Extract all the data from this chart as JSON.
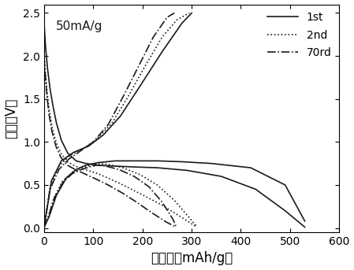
{
  "title_annotation": "50mA/g",
  "xlabel": "比电容（mAh/g）",
  "ylabel": "电压（V）",
  "xlim": [
    0,
    600
  ],
  "ylim": [
    -0.05,
    2.6
  ],
  "xticks": [
    0,
    100,
    200,
    300,
    400,
    500,
    600
  ],
  "yticks": [
    0.0,
    0.5,
    1.0,
    1.5,
    2.0,
    2.5
  ],
  "line_color": "#1a1a1a",
  "background_color": "#ffffff",
  "legend_entries": [
    "1st",
    "2nd",
    "70rd"
  ],
  "linewidth": 1.2,
  "annotation_fontsize": 11,
  "axis_label_fontsize": 12,
  "tick_fontsize": 10,
  "legend_fontsize": 10,
  "discharge_1st": {
    "x": [
      0,
      3,
      7,
      12,
      18,
      25,
      35,
      48,
      65,
      85,
      110,
      140,
      180,
      230,
      290,
      360,
      430,
      490,
      530
    ],
    "y": [
      2.37,
      2.1,
      1.85,
      1.62,
      1.42,
      1.22,
      1.02,
      0.87,
      0.78,
      0.75,
      0.73,
      0.72,
      0.71,
      0.7,
      0.67,
      0.6,
      0.45,
      0.2,
      0.01
    ]
  },
  "charge_1st": {
    "x": [
      0,
      10,
      25,
      45,
      65,
      85,
      110,
      145,
      185,
      230,
      280,
      340,
      420,
      490,
      530
    ],
    "y": [
      0.01,
      0.13,
      0.38,
      0.58,
      0.68,
      0.73,
      0.76,
      0.78,
      0.78,
      0.78,
      0.77,
      0.75,
      0.7,
      0.5,
      0.08
    ]
  },
  "discharge_2nd": {
    "x": [
      0,
      3,
      6,
      10,
      16,
      24,
      34,
      47,
      63,
      82,
      105,
      130,
      160,
      195,
      235,
      275,
      310
    ],
    "y": [
      2.02,
      1.78,
      1.58,
      1.38,
      1.18,
      1.0,
      0.87,
      0.77,
      0.72,
      0.68,
      0.64,
      0.58,
      0.5,
      0.4,
      0.28,
      0.14,
      0.01
    ]
  },
  "charge_2nd": {
    "x": [
      0,
      8,
      20,
      38,
      58,
      78,
      96,
      110,
      130,
      160,
      195,
      230,
      265,
      295,
      310
    ],
    "y": [
      0.01,
      0.12,
      0.35,
      0.55,
      0.65,
      0.7,
      0.73,
      0.75,
      0.74,
      0.7,
      0.62,
      0.5,
      0.32,
      0.12,
      0.02
    ]
  },
  "discharge_70th": {
    "x": [
      0,
      3,
      6,
      10,
      16,
      24,
      34,
      47,
      63,
      82,
      105,
      130,
      158,
      188,
      218,
      248,
      268
    ],
    "y": [
      1.97,
      1.72,
      1.52,
      1.32,
      1.12,
      0.95,
      0.82,
      0.73,
      0.68,
      0.63,
      0.57,
      0.5,
      0.41,
      0.3,
      0.18,
      0.07,
      0.01
    ]
  },
  "charge_70th": {
    "x": [
      0,
      8,
      20,
      38,
      57,
      76,
      93,
      107,
      125,
      152,
      183,
      213,
      240,
      262,
      268
    ],
    "y": [
      0.01,
      0.12,
      0.34,
      0.53,
      0.63,
      0.68,
      0.71,
      0.73,
      0.72,
      0.68,
      0.6,
      0.48,
      0.3,
      0.1,
      0.02
    ]
  },
  "charge_1st_rising": {
    "x": [
      0,
      15,
      35,
      60,
      90,
      120,
      155,
      195,
      240,
      280,
      300
    ],
    "y": [
      0.01,
      0.55,
      0.78,
      0.88,
      0.95,
      1.08,
      1.3,
      1.65,
      2.05,
      2.38,
      2.5
    ]
  },
  "charge_2nd_rising": {
    "x": [
      0,
      12,
      30,
      52,
      78,
      105,
      138,
      170,
      205,
      240,
      270,
      295
    ],
    "y": [
      0.01,
      0.48,
      0.72,
      0.84,
      0.92,
      1.02,
      1.22,
      1.52,
      1.88,
      2.22,
      2.42,
      2.5
    ]
  },
  "charge_70th_rising": {
    "x": [
      0,
      12,
      30,
      50,
      75,
      100,
      130,
      160,
      192,
      222,
      250,
      265
    ],
    "y": [
      0.01,
      0.45,
      0.68,
      0.8,
      0.9,
      1.0,
      1.2,
      1.52,
      1.88,
      2.22,
      2.45,
      2.5
    ]
  }
}
